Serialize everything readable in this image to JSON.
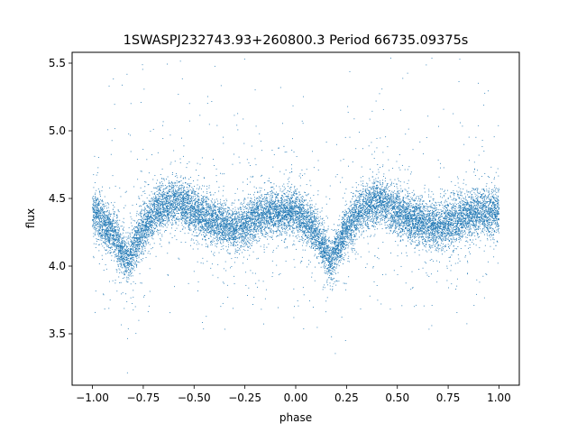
{
  "chart_data": {
    "type": "scatter",
    "title": "1SWASPJ232743.93+260800.3 Period 66735.09375s",
    "xlabel": "phase",
    "ylabel": "flux",
    "xlim": [
      -1.1,
      1.1
    ],
    "ylim": [
      3.12,
      5.58
    ],
    "xticks": [
      -1.0,
      -0.75,
      -0.5,
      -0.25,
      0.0,
      0.25,
      0.5,
      0.75,
      1.0
    ],
    "xtick_labels": [
      "−1.00",
      "−0.75",
      "−0.50",
      "−0.25",
      "0.00",
      "0.25",
      "0.50",
      "0.75",
      "1.00"
    ],
    "yticks": [
      3.5,
      4.0,
      4.5,
      5.0,
      5.5
    ],
    "ytick_labels": [
      "3.5",
      "4.0",
      "4.5",
      "5.0",
      "5.5"
    ],
    "grid": false,
    "point_color": "#1f77b4",
    "phase_profile": {
      "x": [
        0.0,
        0.1,
        0.17,
        0.25,
        0.32,
        0.42,
        0.5,
        0.6,
        0.7,
        0.8,
        0.9,
        1.0
      ],
      "y": [
        4.4,
        4.25,
        4.03,
        4.28,
        4.42,
        4.48,
        4.4,
        4.33,
        4.28,
        4.35,
        4.4,
        4.4
      ]
    },
    "n_points": 15000
  }
}
